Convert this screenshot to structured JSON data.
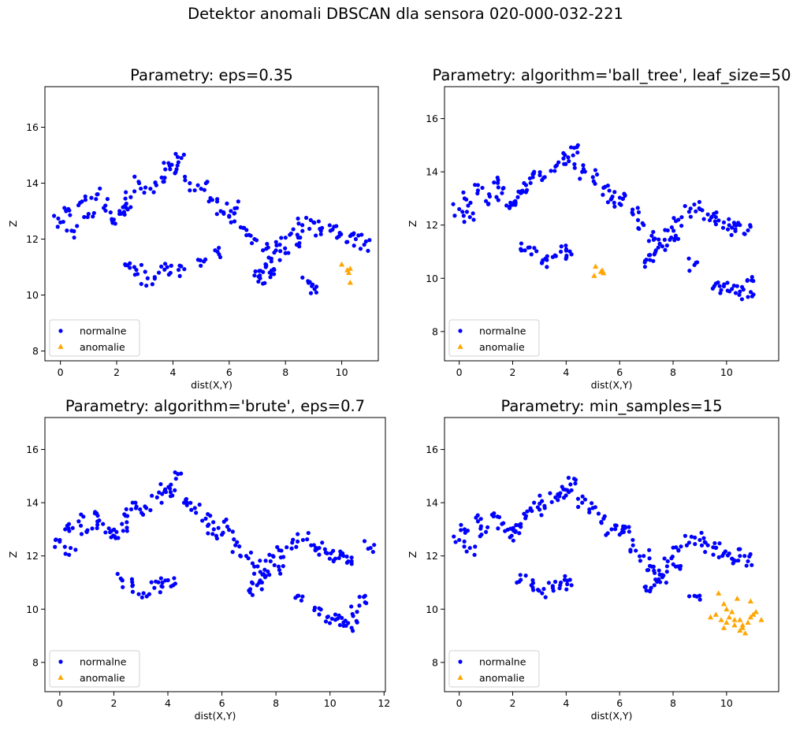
{
  "suptitle": "Detektor anomali DBSCAN dla sensora 020-000-032-221",
  "legend_labels": [
    "normalne",
    "anomalie"
  ],
  "colors": {
    "normal": "#0000ff",
    "anomaly": "#ffa500"
  },
  "chart_data": [
    {
      "type": "scatter",
      "title": "Parametry: eps=0.35",
      "xlabel": "dist(X,Y)",
      "ylabel": "Z",
      "xlim": [
        -0.55,
        11.3
      ],
      "ylim": [
        7.65,
        17.45
      ],
      "xticks": [
        0,
        2,
        4,
        6,
        8,
        10
      ],
      "yticks": [
        8,
        10,
        12,
        14,
        16
      ],
      "legend_position": "lower left",
      "grid": false,
      "anomaly_region": "right edge (x≈10–10.4)",
      "series": [
        {
          "name": "normalne",
          "marker": "circle",
          "color": "#0000ff",
          "x": [
            0.0,
            0.2,
            0.4,
            0.7,
            1.0,
            1.3,
            1.6,
            1.9,
            2.1,
            2.3,
            2.5,
            2.8,
            3.2,
            3.6,
            3.9,
            4.1,
            4.3,
            4.6,
            5.0,
            5.4,
            5.7,
            6.0,
            6.2,
            6.5,
            6.9,
            7.2,
            7.5,
            7.8,
            8.2,
            8.6,
            9.0,
            9.3,
            9.6,
            9.9,
            10.2,
            10.5,
            10.8,
            2.3,
            2.7,
            3.1,
            3.5,
            3.8,
            4.2,
            5.1,
            5.5,
            6.9,
            7.1,
            7.3,
            7.6,
            8.0,
            8.4,
            8.8,
            9.1
          ],
          "y": [
            12.6,
            13.0,
            12.3,
            13.3,
            12.9,
            13.6,
            13.2,
            12.7,
            12.9,
            13.2,
            13.5,
            14.0,
            13.8,
            14.2,
            14.5,
            14.4,
            14.9,
            14.0,
            13.8,
            13.4,
            13.0,
            12.8,
            13.1,
            12.4,
            12.0,
            11.6,
            11.3,
            11.8,
            12.2,
            12.5,
            12.6,
            12.4,
            12.3,
            12.1,
            11.9,
            12.0,
            11.8,
            11.1,
            10.9,
            10.6,
            10.8,
            11.0,
            10.9,
            11.2,
            11.6,
            10.7,
            10.6,
            11.0,
            10.9,
            11.5,
            11.8,
            10.5,
            10.3
          ]
        },
        {
          "name": "anomalie",
          "marker": "triangle",
          "color": "#ffa500",
          "x": [
            10.0,
            10.2,
            10.25,
            10.3,
            10.3
          ],
          "y": [
            11.1,
            10.9,
            10.8,
            10.45,
            10.95
          ]
        }
      ]
    },
    {
      "type": "scatter",
      "title": "Parametry: algorithm='ball_tree', leaf_size=50",
      "xlabel": "dist(X,Y)",
      "ylabel": "Z",
      "xlim": [
        -0.55,
        11.95
      ],
      "ylim": [
        6.9,
        17.2
      ],
      "xticks": [
        0,
        2,
        4,
        6,
        8,
        10
      ],
      "yticks": [
        8,
        10,
        12,
        14,
        16
      ],
      "legend_position": "lower left",
      "grid": false,
      "anomaly_region": "small cluster near x≈5–5.4",
      "series": [
        {
          "name": "normalne",
          "marker": "circle",
          "color": "#0000ff",
          "x": [
            0.0,
            0.2,
            0.4,
            0.7,
            1.0,
            1.3,
            1.6,
            1.9,
            2.1,
            2.3,
            2.5,
            2.8,
            3.2,
            3.6,
            3.9,
            4.1,
            4.3,
            4.6,
            5.0,
            5.4,
            5.7,
            6.0,
            6.2,
            6.5,
            6.9,
            7.2,
            7.5,
            7.8,
            8.2,
            8.6,
            9.0,
            9.3,
            9.6,
            9.9,
            10.2,
            10.5,
            10.8,
            2.3,
            2.7,
            3.1,
            3.5,
            3.8,
            4.2,
            7.0,
            7.3,
            7.6,
            8.1,
            8.8,
            9.6,
            9.9,
            10.2,
            10.5,
            10.8,
            11.0
          ],
          "y": [
            12.6,
            13.0,
            12.3,
            13.3,
            12.9,
            13.6,
            13.2,
            12.7,
            12.9,
            13.2,
            13.5,
            14.0,
            13.8,
            14.2,
            14.5,
            14.4,
            14.9,
            14.0,
            13.8,
            13.4,
            13.0,
            12.8,
            13.1,
            12.4,
            12.0,
            11.6,
            11.3,
            11.8,
            12.2,
            12.5,
            12.6,
            12.4,
            12.3,
            12.1,
            11.9,
            12.0,
            11.8,
            11.1,
            10.9,
            10.6,
            10.8,
            11.0,
            10.9,
            10.7,
            10.9,
            11.2,
            11.6,
            10.5,
            9.8,
            9.7,
            9.6,
            9.5,
            9.3,
            9.9
          ]
        },
        {
          "name": "anomalie",
          "marker": "triangle",
          "color": "#ffa500",
          "x": [
            5.05,
            5.1,
            5.3,
            5.35,
            5.4
          ],
          "y": [
            10.1,
            10.45,
            10.25,
            10.3,
            10.2
          ]
        }
      ]
    },
    {
      "type": "scatter",
      "title": "Parametry: algorithm='brute', eps=0.7",
      "xlabel": "dist(X,Y)",
      "ylabel": "Z",
      "xlim": [
        -0.55,
        12.05
      ],
      "ylim": [
        6.9,
        17.2
      ],
      "xticks": [
        0,
        2,
        4,
        6,
        8,
        10,
        12
      ],
      "yticks": [
        8,
        10,
        12,
        14,
        16
      ],
      "legend_position": "lower left",
      "grid": false,
      "anomaly_region": "none",
      "series": [
        {
          "name": "normalne",
          "marker": "circle",
          "color": "#0000ff",
          "x": [
            0.0,
            0.2,
            0.4,
            0.7,
            1.0,
            1.3,
            1.6,
            1.9,
            2.1,
            2.3,
            2.5,
            2.8,
            3.2,
            3.6,
            3.9,
            4.1,
            4.3,
            4.6,
            5.0,
            5.4,
            5.7,
            6.0,
            6.2,
            6.5,
            6.9,
            7.2,
            7.5,
            7.8,
            8.2,
            8.6,
            9.0,
            9.3,
            9.6,
            9.9,
            10.2,
            10.5,
            10.8,
            2.3,
            2.7,
            3.1,
            3.5,
            3.8,
            4.2,
            7.0,
            7.3,
            7.6,
            8.1,
            8.8,
            9.6,
            9.9,
            10.2,
            10.5,
            10.8,
            11.0,
            11.3,
            11.5
          ],
          "y": [
            12.6,
            13.0,
            12.3,
            13.3,
            12.9,
            13.6,
            13.2,
            12.7,
            12.9,
            13.2,
            13.5,
            14.0,
            13.8,
            14.2,
            14.5,
            14.4,
            14.9,
            14.0,
            13.8,
            13.4,
            13.0,
            12.8,
            13.1,
            12.4,
            12.0,
            11.6,
            11.3,
            11.8,
            12.2,
            12.5,
            12.6,
            12.4,
            12.3,
            12.1,
            11.9,
            12.0,
            11.8,
            11.1,
            10.9,
            10.6,
            10.8,
            11.0,
            10.9,
            10.7,
            10.9,
            11.2,
            11.6,
            10.5,
            9.8,
            9.7,
            9.6,
            9.5,
            9.3,
            9.9,
            10.5,
            12.3
          ]
        },
        {
          "name": "anomalie",
          "marker": "triangle",
          "color": "#ffa500",
          "x": [],
          "y": []
        }
      ]
    },
    {
      "type": "scatter",
      "title": "Parametry: min_samples=15",
      "xlabel": "dist(X,Y)",
      "ylabel": "Z",
      "xlim": [
        -0.55,
        11.95
      ],
      "ylim": [
        6.9,
        17.2
      ],
      "xticks": [
        0,
        2,
        4,
        6,
        8,
        10
      ],
      "yticks": [
        8,
        10,
        12,
        14,
        16
      ],
      "legend_position": "lower left",
      "grid": false,
      "anomaly_region": "lower-right cluster (x≈9.4–11.3, z≈9–10.7)",
      "series": [
        {
          "name": "normalne",
          "marker": "circle",
          "color": "#0000ff",
          "x": [
            0.0,
            0.2,
            0.4,
            0.7,
            1.0,
            1.3,
            1.6,
            1.9,
            2.1,
            2.3,
            2.5,
            2.8,
            3.2,
            3.6,
            3.9,
            4.1,
            4.3,
            4.6,
            5.0,
            5.4,
            5.7,
            6.0,
            6.2,
            6.5,
            6.9,
            7.2,
            7.5,
            7.8,
            8.2,
            8.6,
            9.0,
            9.3,
            9.6,
            9.9,
            10.2,
            10.5,
            10.8,
            2.3,
            2.7,
            3.1,
            3.5,
            3.8,
            4.2,
            7.0,
            7.3,
            7.6,
            8.1,
            8.8
          ],
          "y": [
            12.6,
            13.0,
            12.3,
            13.3,
            12.9,
            13.6,
            13.2,
            12.7,
            12.9,
            13.2,
            13.5,
            14.0,
            13.8,
            14.2,
            14.5,
            14.4,
            14.9,
            14.0,
            13.8,
            13.4,
            13.0,
            12.8,
            13.1,
            12.4,
            12.0,
            11.6,
            11.3,
            11.8,
            12.2,
            12.5,
            12.6,
            12.4,
            12.3,
            12.1,
            11.9,
            12.0,
            11.8,
            11.1,
            10.9,
            10.6,
            10.8,
            11.0,
            10.9,
            10.7,
            10.9,
            11.2,
            11.6,
            10.5
          ]
        },
        {
          "name": "anomalie",
          "marker": "triangle",
          "color": "#ffa500",
          "x": [
            9.4,
            9.6,
            9.8,
            9.9,
            10.0,
            10.1,
            10.2,
            10.3,
            10.4,
            10.5,
            10.6,
            10.7,
            10.8,
            10.9,
            11.0,
            11.1,
            11.3,
            9.7,
            10.0,
            10.3,
            10.5,
            10.9,
            9.9,
            10.6
          ],
          "y": [
            9.7,
            9.8,
            9.6,
            10.2,
            9.5,
            9.7,
            9.9,
            9.4,
            10.4,
            9.6,
            9.3,
            9.1,
            9.5,
            10.3,
            9.8,
            9.9,
            9.6,
            10.6,
            10.0,
            9.6,
            9.2,
            9.7,
            9.3,
            9.4
          ]
        }
      ]
    }
  ]
}
